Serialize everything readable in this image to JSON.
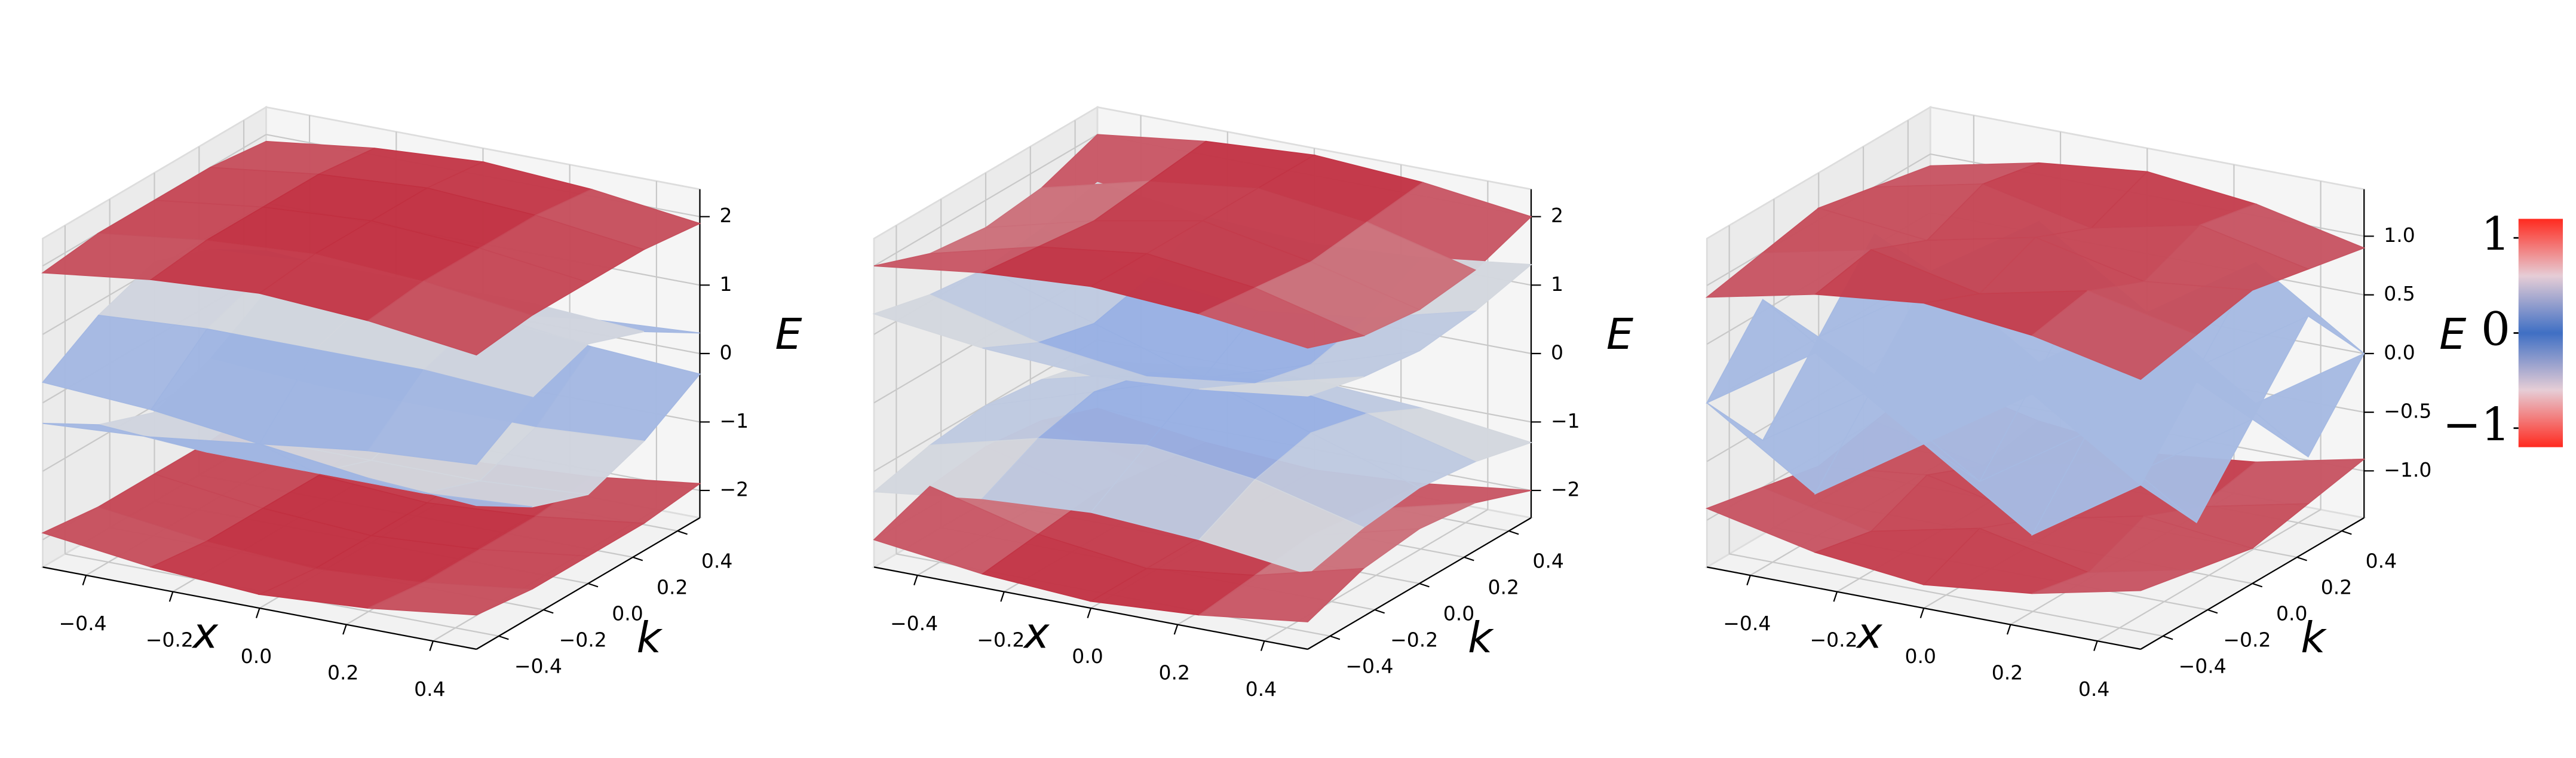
{
  "chart_data": [
    {
      "type": "surface3d",
      "xlabel": "x",
      "ylabel": "k",
      "zlabel": "E",
      "xlim": [
        -0.5,
        0.5
      ],
      "ylim": [
        -0.5,
        0.5
      ],
      "zlim": [
        -2.4,
        2.4
      ],
      "xticks": [
        {
          "value": -0.4,
          "label": "−0.4"
        },
        {
          "value": -0.2,
          "label": "−0.2"
        },
        {
          "value": 0,
          "label": "0.0"
        },
        0.2,
        0.4
      ],
      "yticks": [
        {
          "value": -0.4,
          "label": "−0.4"
        },
        {
          "value": -0.2,
          "label": "−0.2"
        },
        {
          "value": 0,
          "label": "0.0"
        },
        0.2,
        0.4
      ],
      "zticks": [
        {
          "value": -2,
          "label": "−2"
        },
        {
          "value": -1,
          "label": "−1"
        },
        0,
        1,
        2
      ],
      "x": [
        -0.5,
        -0.25,
        0,
        0.25,
        0.5
      ],
      "k": [
        -0.5,
        -0.25,
        0,
        0.25,
        0.5
      ],
      "surfaces": [
        [
          [
            1.9,
            2.1,
            2.2,
            2.1,
            1.9
          ],
          [
            2.0,
            2.2,
            2.3,
            2.2,
            2.0
          ],
          [
            2.0,
            2.2,
            2.3,
            2.2,
            2.0
          ],
          [
            2.0,
            2.2,
            2.3,
            2.2,
            2.0
          ],
          [
            1.9,
            2.1,
            2.2,
            2.1,
            1.9
          ]
        ],
        [
          [
            0.3,
            0.2,
            0.0,
            0.2,
            0.3
          ],
          [
            0.8,
            0.9,
            0.9,
            0.9,
            0.8
          ],
          [
            1.1,
            1.2,
            1.2,
            1.2,
            1.1
          ],
          [
            0.8,
            0.9,
            0.9,
            0.9,
            0.8
          ],
          [
            0.3,
            0.2,
            0.0,
            0.2,
            0.3
          ]
        ],
        [
          [
            -0.3,
            -0.2,
            0.0,
            -0.2,
            -0.3
          ],
          [
            -0.8,
            -0.9,
            -0.9,
            -0.9,
            -0.8
          ],
          [
            -1.1,
            -1.2,
            -1.2,
            -1.2,
            -1.1
          ],
          [
            -0.8,
            -0.9,
            -0.9,
            -0.9,
            -0.8
          ],
          [
            -0.3,
            -0.2,
            0.0,
            -0.2,
            -0.3
          ]
        ],
        [
          [
            -1.9,
            -2.1,
            -2.2,
            -2.1,
            -1.9
          ],
          [
            -2.0,
            -2.2,
            -2.3,
            -2.2,
            -2.0
          ],
          [
            -2.0,
            -2.2,
            -2.3,
            -2.2,
            -2.0
          ],
          [
            -2.0,
            -2.2,
            -2.3,
            -2.2,
            -2.0
          ],
          [
            -1.9,
            -2.1,
            -2.2,
            -2.1,
            -1.9
          ]
        ]
      ]
    },
    {
      "type": "surface3d",
      "xlabel": "x",
      "ylabel": "k",
      "zlabel": "E",
      "xlim": [
        -0.5,
        0.5
      ],
      "ylim": [
        -0.5,
        0.5
      ],
      "zlim": [
        -2.4,
        2.4
      ],
      "xticks": [
        {
          "value": -0.4,
          "label": "−0.4"
        },
        {
          "value": -0.2,
          "label": "−0.2"
        },
        {
          "value": 0,
          "label": "0.0"
        },
        0.2,
        0.4
      ],
      "yticks": [
        {
          "value": -0.4,
          "label": "−0.4"
        },
        {
          "value": -0.2,
          "label": "−0.2"
        },
        {
          "value": 0,
          "label": "0.0"
        },
        0.2,
        0.4
      ],
      "zticks": [
        {
          "value": -2,
          "label": "−2"
        },
        {
          "value": -1,
          "label": "−1"
        },
        0,
        1,
        2
      ],
      "x": [
        -0.5,
        -0.25,
        0,
        0.25,
        0.5
      ],
      "k": [
        -0.5,
        -0.25,
        0,
        0.25,
        0.5
      ],
      "surfaces": [
        [
          [
            2.0,
            2.2,
            2.3,
            2.2,
            2.0
          ],
          [
            1.7,
            2.1,
            2.3,
            2.1,
            1.7
          ],
          [
            1.6,
            2.0,
            2.3,
            2.0,
            1.6
          ],
          [
            1.7,
            2.1,
            2.3,
            2.1,
            1.7
          ],
          [
            2.0,
            2.2,
            2.3,
            2.2,
            2.0
          ]
        ],
        [
          [
            1.3,
            1.1,
            1.0,
            1.1,
            1.3
          ],
          [
            1.1,
            0.7,
            0.5,
            0.7,
            1.1
          ],
          [
            1.0,
            0.5,
            0.0,
            0.5,
            1.0
          ],
          [
            1.1,
            0.7,
            0.5,
            0.7,
            1.1
          ],
          [
            1.3,
            1.1,
            1.0,
            1.1,
            1.3
          ]
        ],
        [
          [
            -1.3,
            -1.1,
            -1.0,
            -1.1,
            -1.3
          ],
          [
            -1.1,
            -0.7,
            -0.5,
            -0.7,
            -1.1
          ],
          [
            -1.0,
            -0.5,
            0.0,
            -0.5,
            -1.0
          ],
          [
            -1.1,
            -0.7,
            -0.5,
            -0.7,
            -1.1
          ],
          [
            -1.3,
            -1.1,
            -1.0,
            -1.1,
            -1.3
          ]
        ],
        [
          [
            -2.0,
            -2.2,
            -2.3,
            -2.2,
            -2.0
          ],
          [
            -1.7,
            -2.1,
            -2.3,
            -2.1,
            -1.7
          ],
          [
            -1.6,
            -2.0,
            -2.3,
            -2.0,
            -1.6
          ],
          [
            -1.7,
            -2.1,
            -2.3,
            -2.1,
            -1.7
          ],
          [
            -2.0,
            -2.2,
            -2.3,
            -2.2,
            -2.0
          ]
        ]
      ]
    },
    {
      "type": "surface3d",
      "xlabel": "x",
      "ylabel": "k",
      "zlabel": "E",
      "xlim": [
        -0.5,
        0.5
      ],
      "ylim": [
        -0.5,
        0.5
      ],
      "zlim": [
        -1.4,
        1.4
      ],
      "xticks": [
        {
          "value": -0.4,
          "label": "−0.4"
        },
        {
          "value": -0.2,
          "label": "−0.2"
        },
        {
          "value": 0,
          "label": "0.0"
        },
        0.2,
        0.4
      ],
      "yticks": [
        {
          "value": -0.4,
          "label": "−0.4"
        },
        {
          "value": -0.2,
          "label": "−0.2"
        },
        {
          "value": 0,
          "label": "0.0"
        },
        0.2,
        0.4
      ],
      "zticks": [
        {
          "value": -1,
          "label": "−1.0"
        },
        {
          "value": -0.5,
          "label": "−0.5"
        },
        {
          "value": 0,
          "label": "0.0"
        },
        0.5,
        {
          "value": 1,
          "label": "1.0"
        }
      ],
      "x": [
        -0.5,
        -0.25,
        0,
        0.25,
        0.5
      ],
      "k": [
        -0.5,
        -0.25,
        0,
        0.25,
        0.5
      ],
      "surfaces": [
        [
          [
            0.9,
            1.1,
            1.2,
            1.1,
            0.9
          ],
          [
            1.0,
            1.2,
            1.0,
            1.2,
            1.0
          ],
          [
            1.1,
            1.0,
            1.2,
            1.0,
            1.1
          ],
          [
            1.0,
            1.2,
            1.0,
            1.2,
            1.0
          ],
          [
            0.9,
            1.1,
            1.2,
            1.1,
            0.9
          ]
        ],
        [
          [
            0.0,
            0.6,
            0.0,
            0.6,
            0.0
          ],
          [
            0.6,
            0.0,
            0.6,
            0.0,
            0.6
          ],
          [
            0.0,
            0.6,
            0.0,
            0.6,
            0.0
          ],
          [
            0.6,
            0.0,
            0.6,
            0.0,
            0.6
          ],
          [
            0.0,
            0.6,
            0.0,
            0.6,
            0.0
          ]
        ],
        [
          [
            0.0,
            -0.6,
            0.0,
            -0.6,
            0.0
          ],
          [
            -0.6,
            0.0,
            -0.6,
            0.0,
            -0.6
          ],
          [
            0.0,
            -0.6,
            0.0,
            -0.6,
            0.0
          ],
          [
            -0.6,
            0.0,
            -0.6,
            0.0,
            -0.6
          ],
          [
            0.0,
            -0.6,
            0.0,
            -0.6,
            0.0
          ]
        ],
        [
          [
            -0.9,
            -1.1,
            -1.2,
            -1.1,
            -0.9
          ],
          [
            -1.0,
            -1.2,
            -1.0,
            -1.2,
            -1.0
          ],
          [
            -1.1,
            -1.0,
            -1.2,
            -1.0,
            -1.1
          ],
          [
            -1.0,
            -1.2,
            -1.0,
            -1.2,
            -1.0
          ],
          [
            -0.9,
            -1.1,
            -1.2,
            -1.1,
            -0.9
          ]
        ]
      ]
    }
  ],
  "surface_colors": [
    "#6f96e6",
    "#dddddd",
    "#c0283a"
  ],
  "colorbar": {
    "lim": [
      -1.2,
      1.2
    ],
    "ticks": [
      {
        "value": -1,
        "label": "−1"
      },
      0,
      1
    ],
    "colors": [
      "#ff2a1f",
      "#e6cdd6",
      "#3f6fc4",
      "#e6cdd6",
      "#ff2a1f"
    ]
  }
}
